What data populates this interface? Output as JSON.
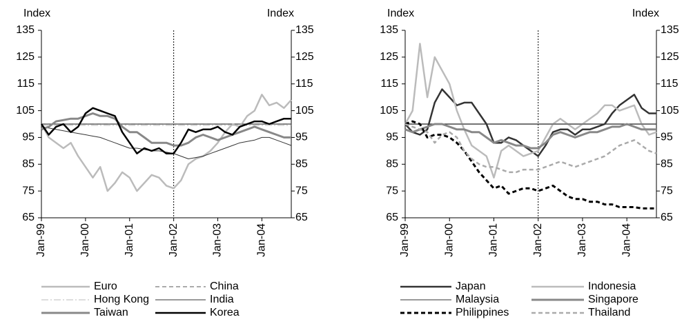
{
  "chart_data": [
    {
      "type": "line",
      "ylabel": "Index",
      "y2label": "Index",
      "categories": [
        "Jan-99",
        null,
        null,
        null,
        null,
        null,
        "Jan-00",
        null,
        null,
        null,
        null,
        null,
        "Jan-01",
        null,
        null,
        null,
        null,
        null,
        "Jan-02",
        null,
        null,
        null,
        null,
        null,
        "Jan-03",
        null,
        null,
        null,
        null,
        null,
        "Jan-04",
        null,
        null,
        null,
        null
      ],
      "ylim": [
        65,
        135
      ],
      "yticks": [
        65,
        75,
        85,
        95,
        105,
        115,
        125,
        135
      ],
      "y2lim": [
        65,
        135
      ],
      "y2ticks": [
        65,
        75,
        85,
        95,
        105,
        115,
        125,
        135
      ],
      "reference_y": 100,
      "reference_x": "Jan-02",
      "series": [
        {
          "name": "Euro",
          "color": "#bbbbbb",
          "width": 2.5,
          "style": "solid",
          "values": [
            100,
            95,
            93,
            91,
            93,
            88,
            84,
            80,
            84,
            75,
            78,
            82,
            80,
            75,
            78,
            81,
            80,
            77,
            76,
            79,
            85,
            87,
            88,
            90,
            93,
            97,
            100,
            99,
            103,
            105,
            111,
            107,
            108,
            106,
            109
          ]
        },
        {
          "name": "China",
          "color": "#555555",
          "width": 1,
          "style": "dashed",
          "values": [
            100,
            100,
            100,
            100,
            100,
            100,
            100,
            100,
            100,
            100,
            100,
            100,
            100,
            100,
            100,
            100,
            100,
            100,
            100,
            100,
            100,
            100,
            100,
            100,
            100,
            100,
            100,
            100,
            100,
            100,
            100,
            100,
            100,
            100,
            100
          ]
        },
        {
          "name": "Hong Kong",
          "color": "#bbbbbb",
          "width": 1,
          "style": "dashdot",
          "values": [
            99.5,
            99.5,
            99.5,
            99.5,
            99.5,
            99.5,
            99.5,
            99.5,
            99.5,
            99.5,
            99.5,
            99.5,
            99.5,
            99.5,
            99.5,
            99.5,
            99.5,
            99.5,
            99.5,
            99.5,
            99.5,
            99.5,
            99.5,
            99.5,
            99.5,
            99.5,
            99.5,
            99.5,
            99.5,
            99.5,
            99.5,
            99.5,
            99.5,
            99.5,
            99.5
          ]
        },
        {
          "name": "India",
          "color": "#333333",
          "width": 1,
          "style": "solid",
          "values": [
            99,
            98.5,
            98,
            97.5,
            97,
            96.5,
            96,
            95.5,
            95,
            94,
            93,
            92,
            91,
            91,
            90.5,
            90,
            90,
            89.5,
            89,
            88,
            87,
            87.5,
            88,
            89,
            90,
            91,
            92,
            93,
            93.5,
            94,
            95,
            95,
            94,
            93,
            92
          ]
        },
        {
          "name": "Taiwan",
          "color": "#888888",
          "width": 3,
          "style": "solid",
          "values": [
            98,
            99,
            101,
            101.5,
            102,
            102,
            103,
            104,
            103,
            103,
            102,
            99,
            97,
            97,
            95,
            93,
            93,
            93,
            92,
            92,
            93,
            95,
            96,
            95,
            94,
            95,
            96,
            97,
            98,
            99,
            98,
            97,
            96,
            95,
            95
          ]
        },
        {
          "name": "Korea",
          "color": "#000000",
          "width": 2.5,
          "style": "solid",
          "values": [
            100,
            96,
            99,
            100,
            97,
            99,
            104,
            106,
            105,
            104,
            103,
            97,
            93,
            89,
            91,
            90,
            91,
            89,
            89,
            93,
            98,
            97,
            98,
            98,
            99,
            97,
            96,
            99,
            100,
            101,
            101,
            100,
            101,
            102,
            102
          ]
        }
      ]
    },
    {
      "type": "line",
      "ylabel": "Index",
      "y2label": "Index",
      "categories": [
        "Jan-99",
        null,
        null,
        null,
        null,
        null,
        "Jan-00",
        null,
        null,
        null,
        null,
        null,
        "Jan-01",
        null,
        null,
        null,
        null,
        null,
        "Jan-02",
        null,
        null,
        null,
        null,
        null,
        "Jan-03",
        null,
        null,
        null,
        null,
        null,
        "Jan-04",
        null,
        null,
        null,
        null
      ],
      "ylim": [
        65,
        135
      ],
      "yticks": [
        65,
        75,
        85,
        95,
        105,
        115,
        125,
        135
      ],
      "y2lim": [
        65,
        135
      ],
      "y2ticks": [
        65,
        75,
        85,
        95,
        105,
        115,
        125,
        135
      ],
      "reference_y": 100,
      "reference_x": "Jan-02",
      "series": [
        {
          "name": "Japan",
          "color": "#333333",
          "width": 2.5,
          "style": "solid",
          "values": [
            100,
            97,
            96,
            98,
            108,
            113,
            110,
            107,
            108,
            108,
            104,
            100,
            93,
            93,
            95,
            94,
            92,
            90,
            88,
            92,
            97,
            98,
            98,
            96,
            98,
            98,
            99,
            100,
            104,
            107,
            109,
            111,
            106,
            104,
            104
          ]
        },
        {
          "name": "Indonesia",
          "color": "#bbbbbb",
          "width": 2.5,
          "style": "solid",
          "values": [
            100,
            105,
            130,
            110,
            125,
            120,
            115,
            105,
            98,
            92,
            90,
            88,
            80,
            90,
            92,
            90,
            88,
            89,
            90,
            95,
            100,
            102,
            100,
            98,
            100,
            102,
            104,
            107,
            107,
            105,
            106,
            107,
            100,
            96,
            97
          ]
        },
        {
          "name": "Malaysia",
          "color": "#333333",
          "width": 1,
          "style": "solid",
          "values": [
            100,
            100,
            100,
            100,
            100,
            100,
            100,
            100,
            100,
            100,
            100,
            100,
            100,
            100,
            100,
            100,
            100,
            100,
            100,
            100,
            100,
            100,
            100,
            100,
            100,
            100,
            100,
            100,
            100,
            100,
            100,
            100,
            100,
            100,
            100
          ]
        },
        {
          "name": "Singapore",
          "color": "#888888",
          "width": 3,
          "style": "solid",
          "values": [
            98,
            97,
            98,
            99,
            100,
            100,
            99,
            98,
            98,
            97,
            97,
            95,
            93,
            94,
            93,
            92,
            92,
            91,
            91,
            93,
            96,
            97,
            96,
            95,
            96,
            97,
            97,
            98,
            99,
            99,
            100,
            99,
            98,
            98,
            98
          ]
        },
        {
          "name": "Philippines",
          "color": "#000000",
          "width": 3,
          "style": "dashed",
          "values": [
            100,
            101,
            100,
            95,
            96,
            96,
            95,
            93,
            90,
            86,
            82,
            79,
            76,
            77,
            74,
            75,
            76,
            76,
            75,
            76,
            77,
            75,
            73,
            72,
            72,
            71,
            71,
            70,
            70,
            69,
            69,
            69,
            68.5,
            68.5,
            68.5
          ]
        },
        {
          "name": "Thailand",
          "color": "#aaaaaa",
          "width": 2.5,
          "style": "dashed",
          "values": [
            100,
            99,
            98,
            97,
            93,
            96,
            97,
            95,
            90,
            87,
            85,
            84,
            84,
            83,
            82,
            82,
            83,
            83,
            83,
            84,
            85,
            86,
            85,
            84,
            85,
            86,
            87,
            88,
            90,
            92,
            93,
            94,
            92,
            90,
            89
          ]
        }
      ]
    }
  ]
}
